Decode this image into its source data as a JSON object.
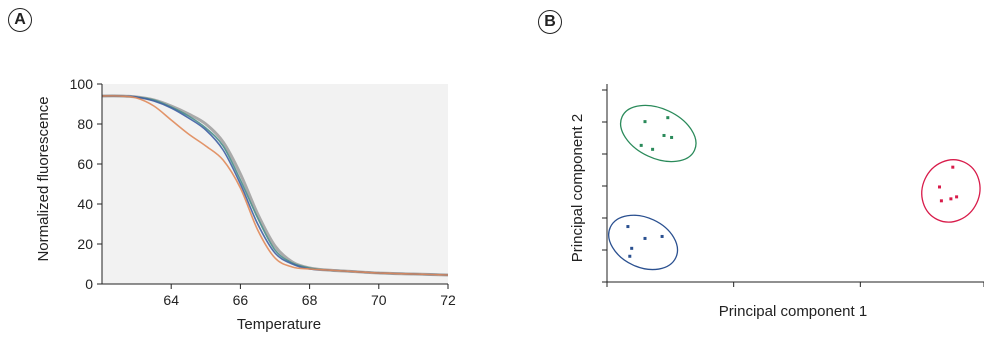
{
  "panels": {
    "a_label": "A",
    "b_label": "B"
  },
  "chart_data": [
    {
      "type": "line",
      "panel": "A",
      "xlabel": "Temperature",
      "ylabel": "Normalized fluorescence",
      "xlim": [
        62,
        72
      ],
      "ylim": [
        0,
        100
      ],
      "xticks": [
        64,
        66,
        68,
        70,
        72
      ],
      "yticks": [
        0,
        20,
        40,
        60,
        80,
        100
      ],
      "grid": false,
      "plot_background": "#f2f2f2",
      "series": [
        {
          "color": "#8c8c8c",
          "x": [
            62,
            62.5,
            63,
            63.5,
            64,
            64.5,
            65,
            65.5,
            66,
            66.5,
            67,
            67.5,
            68,
            68.5,
            69,
            70,
            71,
            72
          ],
          "y": [
            94,
            94,
            93.5,
            92,
            89,
            85,
            80,
            71,
            55,
            35,
            19,
            11,
            8,
            7,
            6.5,
            5.5,
            5,
            4.5
          ]
        },
        {
          "color": "#4a8e8a",
          "x": [
            62,
            62.5,
            63,
            63.5,
            64,
            64.5,
            65,
            65.5,
            66,
            66.5,
            67,
            67.5,
            68,
            68.5,
            69,
            70,
            71,
            72
          ],
          "y": [
            94,
            94,
            93.5,
            92,
            88.5,
            84,
            78,
            69,
            52,
            33,
            17,
            10.5,
            8,
            7,
            6.5,
            5.5,
            5,
            4.5
          ]
        },
        {
          "color": "#3e5fa3",
          "x": [
            62,
            62.5,
            63,
            63.5,
            64,
            64.5,
            65,
            65.5,
            66,
            66.5,
            67,
            67.5,
            68,
            68.5,
            69,
            70,
            71,
            72
          ],
          "y": [
            94,
            94,
            93.5,
            91.5,
            88,
            83,
            77,
            67,
            50,
            30,
            15.5,
            10,
            7.5,
            7,
            6.5,
            5.5,
            5,
            4.5
          ]
        },
        {
          "color": "#e0895a",
          "x": [
            62,
            62.5,
            63,
            63.5,
            64,
            64.5,
            65,
            65.5,
            66,
            66.5,
            67,
            67.5,
            68,
            68.5,
            69,
            70,
            71,
            72
          ],
          "y": [
            94,
            94,
            93,
            89,
            82,
            75,
            69,
            62,
            48,
            27,
            13,
            8.5,
            7.5,
            7,
            6.5,
            5.5,
            5,
            4.5
          ]
        }
      ]
    },
    {
      "type": "scatter",
      "panel": "B",
      "xlabel": "Principal component 1",
      "ylabel": "Principal component 2",
      "xlim": [
        0,
        10
      ],
      "ylim": [
        0,
        10
      ],
      "ytick_count": 7,
      "xtick_count": 4,
      "grid": false,
      "series": [
        {
          "color": "#2a8a5a",
          "points": [
            [
              1.0,
              8.1
            ],
            [
              1.6,
              8.3
            ],
            [
              0.9,
              6.9
            ],
            [
              1.2,
              6.7
            ],
            [
              1.5,
              7.4
            ],
            [
              1.7,
              7.3
            ]
          ],
          "ellipse": {
            "center": [
              1.35,
              7.5
            ],
            "radii": [
              1.05,
              1.25
            ]
          }
        },
        {
          "color": "#2a5090",
          "points": [
            [
              0.55,
              2.8
            ],
            [
              1.0,
              2.2
            ],
            [
              1.45,
              2.3
            ],
            [
              0.65,
              1.7
            ],
            [
              0.6,
              1.3
            ]
          ],
          "ellipse": {
            "center": [
              0.95,
              2.0
            ],
            "radii": [
              0.95,
              1.25
            ]
          }
        },
        {
          "color": "#d81b4a",
          "points": [
            [
              9.1,
              5.8
            ],
            [
              8.75,
              4.8
            ],
            [
              8.8,
              4.1
            ],
            [
              9.05,
              4.2
            ],
            [
              9.2,
              4.3
            ]
          ],
          "ellipse": {
            "center": [
              9.05,
              4.6
            ],
            "radii": [
              0.75,
              1.6
            ]
          }
        }
      ]
    }
  ]
}
